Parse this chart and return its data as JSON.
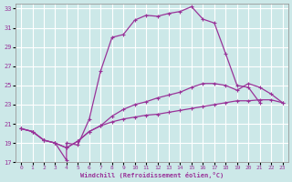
{
  "xlabel": "Windchill (Refroidissement éolien,°C)",
  "xlim": [
    -0.5,
    23.5
  ],
  "ylim": [
    17,
    33.5
  ],
  "xticks": [
    0,
    1,
    2,
    3,
    4,
    5,
    6,
    7,
    8,
    9,
    10,
    11,
    12,
    13,
    14,
    15,
    16,
    17,
    18,
    19,
    20,
    21,
    22,
    23
  ],
  "yticks": [
    17,
    19,
    21,
    23,
    25,
    27,
    29,
    31,
    33
  ],
  "bg_color": "#cce8e8",
  "line_color": "#993399",
  "grid_color": "#ffffff",
  "line1_x": [
    0,
    1,
    2,
    3,
    4,
    5,
    6,
    7,
    8,
    9,
    10,
    11,
    12,
    13,
    14,
    15,
    16,
    17,
    18,
    19,
    20,
    21,
    22,
    23
  ],
  "line1_y": [
    20.5,
    20.2,
    19.3,
    19.0,
    18.5,
    19.2,
    20.2,
    20.8,
    21.2,
    21.5,
    21.7,
    21.9,
    22.0,
    22.2,
    22.4,
    22.6,
    22.8,
    23.0,
    23.2,
    23.4,
    23.4,
    23.5,
    23.5,
    23.2
  ],
  "line2_x": [
    0,
    1,
    2,
    3,
    4,
    5,
    6,
    7,
    8,
    9,
    10,
    11,
    12,
    13,
    14,
    15,
    16,
    17,
    18,
    19,
    20,
    21,
    22,
    23
  ],
  "line2_y": [
    20.5,
    20.2,
    19.3,
    19.0,
    18.5,
    19.2,
    20.2,
    20.8,
    21.8,
    22.5,
    23.0,
    23.3,
    23.7,
    24.0,
    24.3,
    24.8,
    25.2,
    25.2,
    25.0,
    24.5,
    25.2,
    24.8,
    24.1,
    23.2
  ],
  "line3_x": [
    0,
    1,
    2,
    3,
    4,
    4,
    5,
    6,
    7,
    8,
    9,
    10,
    11,
    12,
    13,
    14,
    15,
    16,
    17,
    18,
    19,
    20,
    21
  ],
  "line3_y": [
    20.5,
    20.2,
    19.3,
    19.0,
    17.2,
    19.0,
    18.8,
    21.5,
    26.5,
    30.0,
    30.3,
    31.8,
    32.3,
    32.2,
    32.5,
    32.7,
    33.2,
    31.9,
    31.5,
    28.3,
    25.0,
    24.8,
    23.2
  ]
}
